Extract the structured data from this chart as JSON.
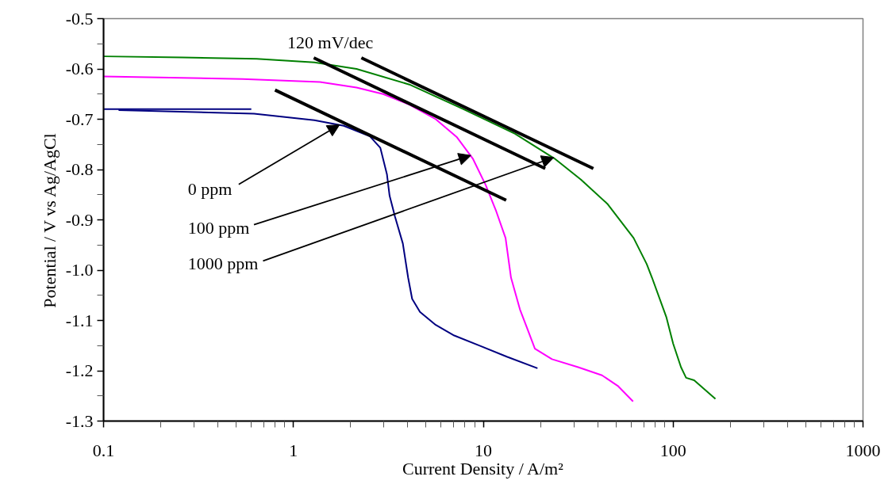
{
  "chart_data": {
    "type": "line",
    "xlabel": "Current Density / A/m²",
    "ylabel": "Potential / V vs Ag/AgCl",
    "log": "x",
    "xlim": [
      0.1,
      1000
    ],
    "xticks": [
      0.1,
      1,
      10,
      100,
      1000
    ],
    "ylim": [
      -1.3,
      -0.5
    ],
    "yticks": [
      -1.3,
      -1.2,
      -1.1,
      {
        "value": -1.0,
        "label": "-1.0"
      },
      -0.9,
      -0.8,
      -0.7,
      -0.6,
      -0.5
    ],
    "grid": false,
    "marker": "none",
    "line_style": "solid",
    "series": [
      {
        "color": "#000080",
        "x": [
          0.12,
          0.62,
          1.29,
          1.84,
          2.53,
          2.87,
          3.11,
          3.21,
          3.43,
          3.77,
          4.02,
          4.22,
          4.64,
          5.62,
          7.03,
          9.69,
          13.3,
          19.3
        ],
        "values": [
          -0.682,
          -0.689,
          -0.702,
          -0.713,
          -0.734,
          -0.757,
          -0.81,
          -0.852,
          -0.894,
          -0.947,
          -1.015,
          -1.057,
          -1.083,
          -1.109,
          -1.13,
          -1.151,
          -1.172,
          -1.195
        ]
      },
      {
        "color": "#000080",
        "x": [
          0.1,
          0.6
        ],
        "values": [
          -0.68,
          -0.68
        ]
      },
      {
        "color": "#ff00ff",
        "x": [
          0.1,
          0.54,
          1.38,
          2.15,
          2.97,
          4.08,
          5.62,
          7.27,
          8.8,
          10.3,
          11.7,
          13.1,
          14.0,
          15.6,
          17.2,
          18.7,
          23.0,
          31.6,
          42.2,
          51.1,
          61.5
        ],
        "values": [
          -0.615,
          -0.62,
          -0.626,
          -0.637,
          -0.65,
          -0.671,
          -0.7,
          -0.736,
          -0.778,
          -0.831,
          -0.883,
          -0.936,
          -1.015,
          -1.078,
          -1.12,
          -1.156,
          -1.177,
          -1.193,
          -1.209,
          -1.23,
          -1.261
        ]
      },
      {
        "color": "#008000",
        "x": [
          0.1,
          0.26,
          0.64,
          1.29,
          2.15,
          4.08,
          7.75,
          14.7,
          23.7,
          32.7,
          45,
          61.9,
          72.6,
          77.4,
          92.2,
          100,
          110,
          117,
          129,
          167
        ],
        "values": [
          -0.575,
          -0.577,
          -0.58,
          -0.587,
          -0.6,
          -0.631,
          -0.679,
          -0.729,
          -0.778,
          -0.82,
          -0.868,
          -0.936,
          -0.988,
          -1.015,
          -1.094,
          -1.146,
          -1.193,
          -1.214,
          -1.219,
          -1.256
        ]
      },
      {
        "color": "#000000",
        "x": [
          0.8,
          13.2
        ],
        "values": [
          -0.642,
          -0.861
        ]
      },
      {
        "color": "#000000",
        "x": [
          1.28,
          21.2
        ],
        "values": [
          -0.578,
          -0.798
        ]
      },
      {
        "color": "#000000",
        "x": [
          2.28,
          38
        ],
        "values": [
          -0.578,
          -0.798
        ]
      }
    ],
    "annotations": [
      "120 mV/dec",
      {
        "text": "0 ppm",
        "x": 1.75,
        "y": -0.711
      },
      {
        "text": "100 ppm",
        "x": 8.6,
        "y": -0.772
      },
      {
        "text": "1000 ppm",
        "x": 23.5,
        "y": -0.776
      }
    ]
  }
}
